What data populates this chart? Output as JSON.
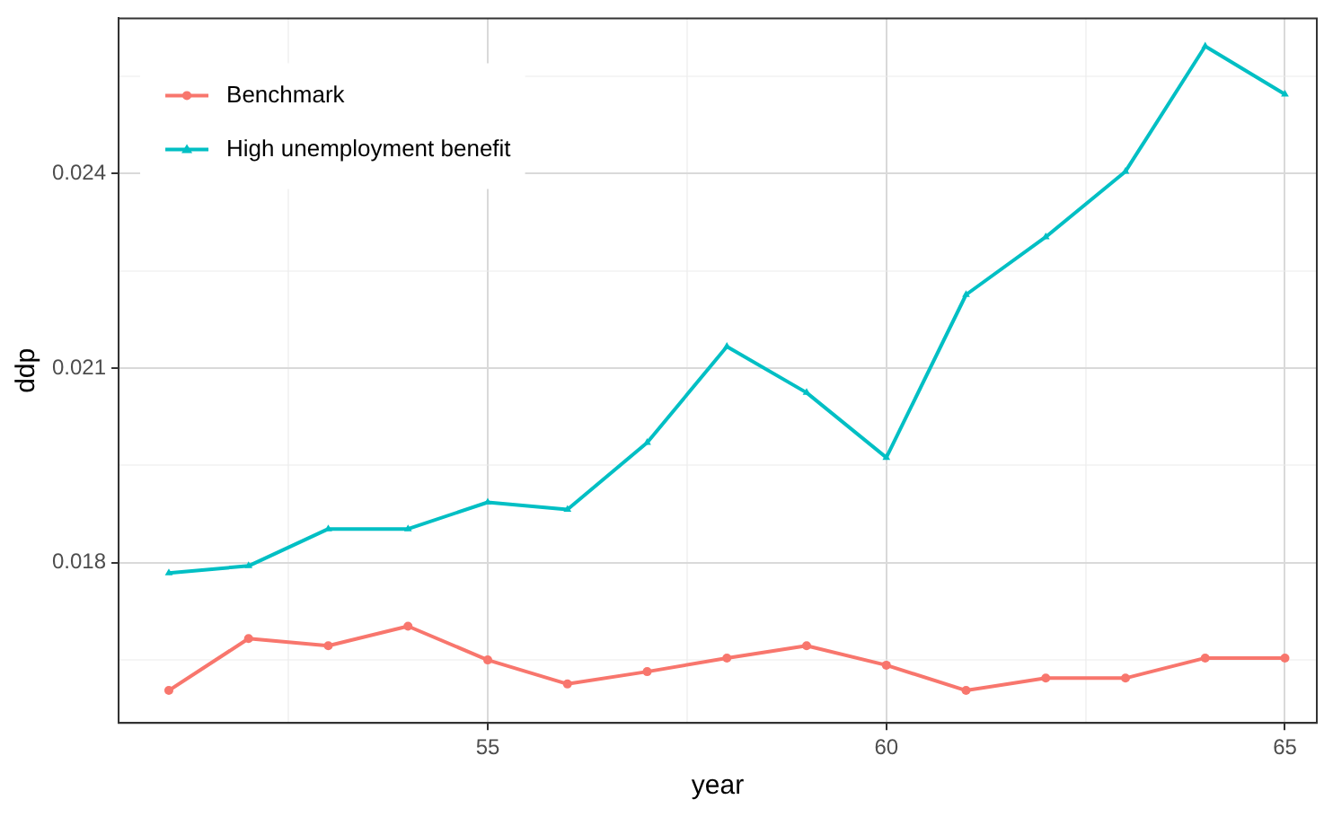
{
  "chart_data": {
    "type": "line",
    "xlabel": "year",
    "ylabel": "ddp",
    "x": [
      51,
      52,
      53,
      54,
      55,
      56,
      57,
      58,
      59,
      60,
      61,
      62,
      63,
      64,
      65
    ],
    "series": [
      {
        "name": "Benchmark",
        "color": "#f8766d",
        "marker": "circle",
        "values": [
          0.01603,
          0.01683,
          0.01672,
          0.01702,
          0.0165,
          0.01613,
          0.01632,
          0.01653,
          0.01672,
          0.01642,
          0.01603,
          0.01622,
          0.01622,
          0.01653,
          0.01653
        ]
      },
      {
        "name": "High unemployment benefit",
        "color": "#00bfc4",
        "marker": "triangle",
        "values": [
          0.01784,
          0.01795,
          0.01852,
          0.01852,
          0.01893,
          0.01882,
          0.01985,
          0.02133,
          0.02062,
          0.01962,
          0.02213,
          0.02302,
          0.02403,
          0.02596,
          0.02522
        ]
      }
    ],
    "xlim": [
      50.37,
      65.4
    ],
    "ylim": [
      0.01553,
      0.02639
    ],
    "xticks": [
      {
        "value": 52.5,
        "label": null
      },
      55,
      {
        "value": 57.5,
        "label": null
      },
      60,
      {
        "value": 62.5,
        "label": null
      },
      65
    ],
    "yticks": [
      {
        "value": 0.0165,
        "label": null
      },
      0.018,
      {
        "value": 0.0195,
        "label": null
      },
      0.021,
      {
        "value": 0.0225,
        "label": null
      },
      0.024,
      {
        "value": 0.0255,
        "label": null
      }
    ],
    "grid": true,
    "legend": "top left",
    "line_style": "solid"
  }
}
